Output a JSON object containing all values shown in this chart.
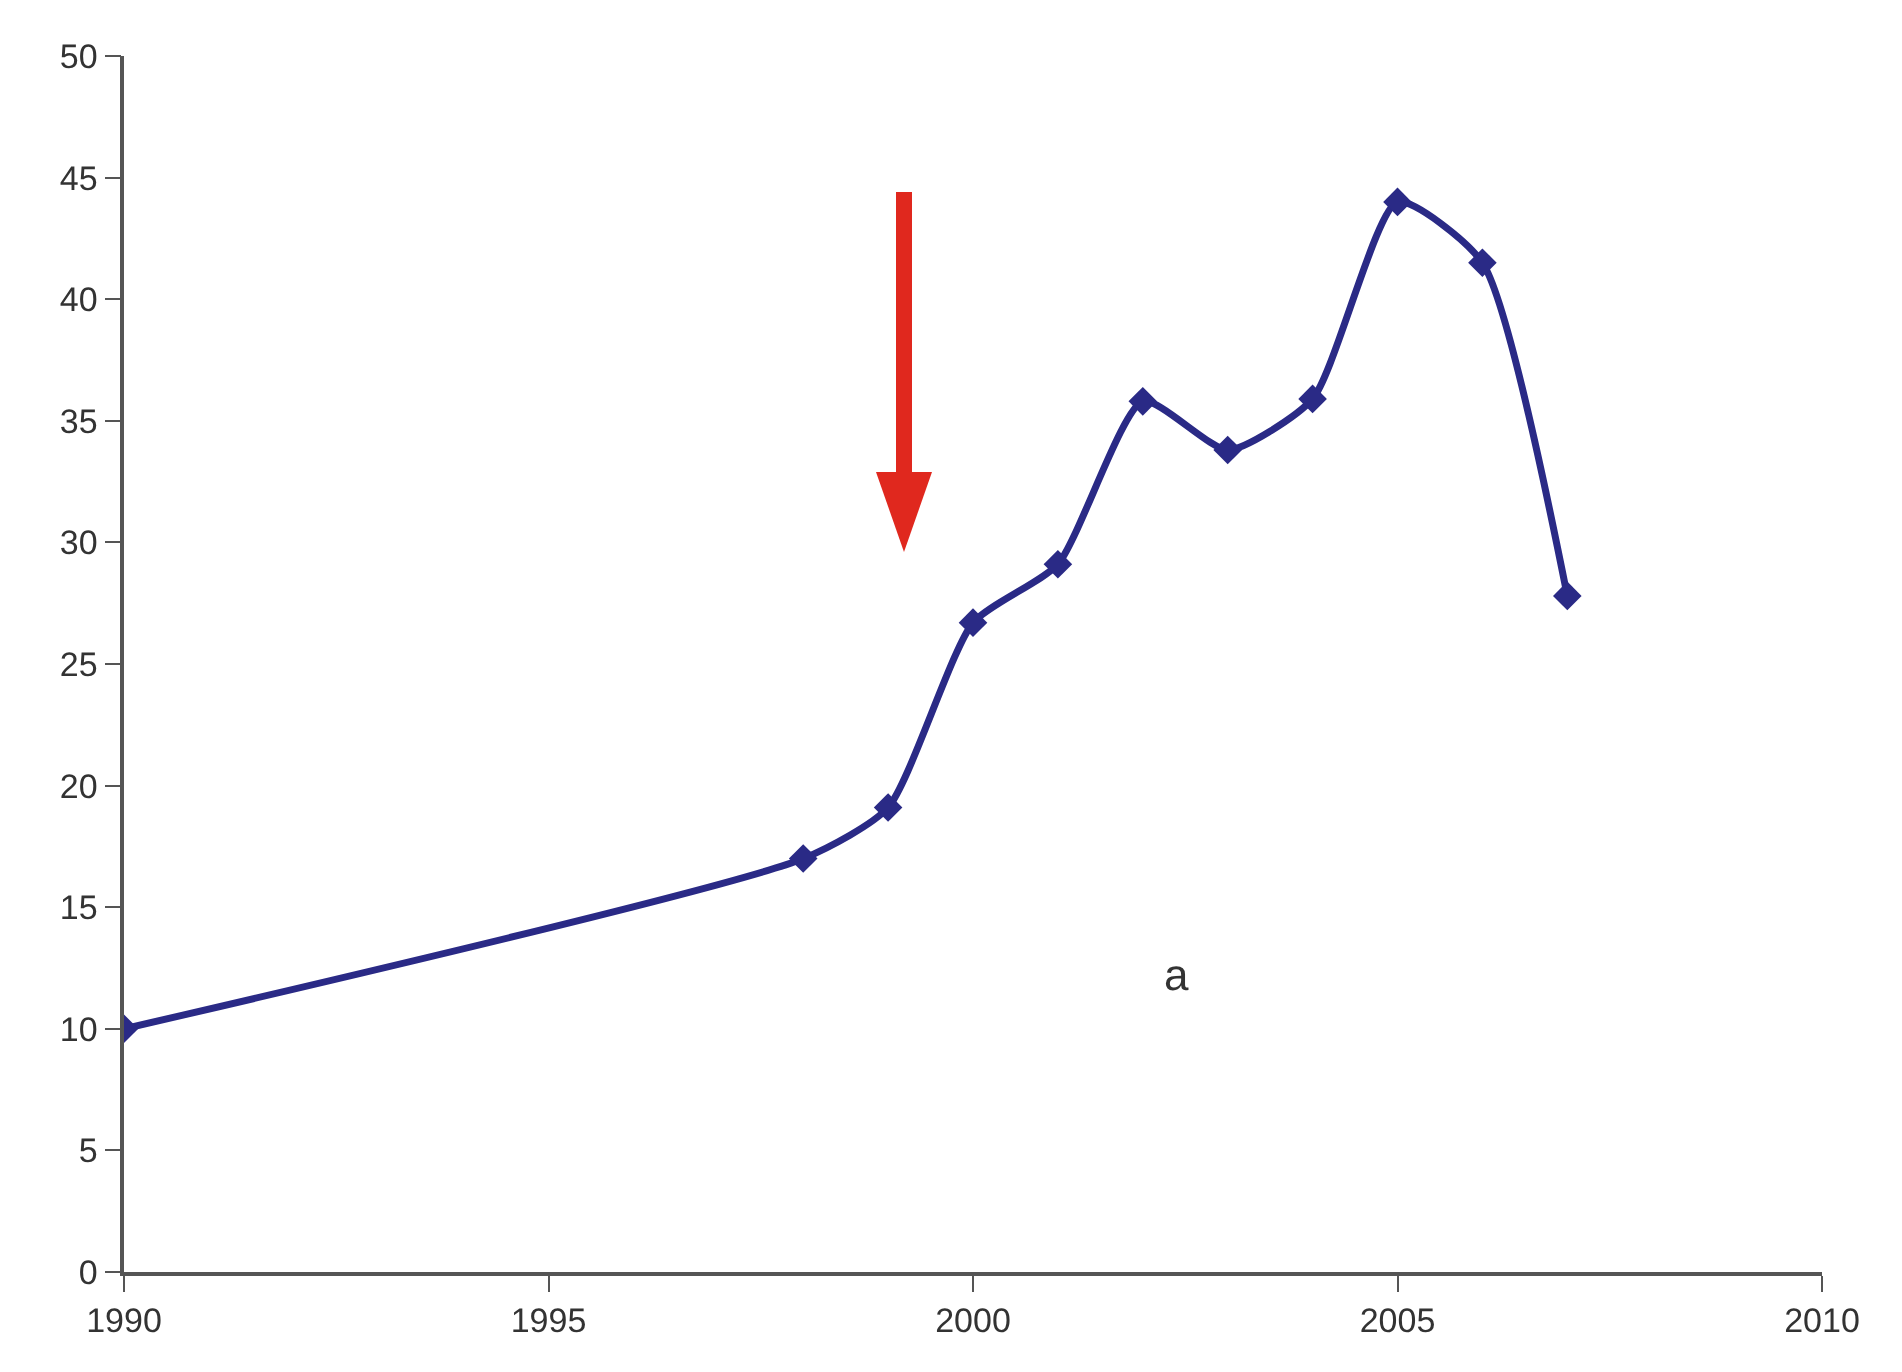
{
  "chart_data": {
    "type": "line",
    "x": [
      1990,
      1998,
      1999,
      2000,
      2001,
      2002,
      2003,
      2004,
      2005,
      2006,
      2007
    ],
    "series": [
      {
        "color": "#2a2a86",
        "values": [
          10,
          17,
          19.1,
          26.7,
          29.1,
          35.8,
          33.8,
          35.9,
          44,
          41.5,
          27.8
        ]
      }
    ],
    "xlim": [
      1990,
      2010
    ],
    "xticks": [
      1990,
      1995,
      2000,
      2005,
      2010
    ],
    "ylim": [
      0,
      50
    ],
    "yticks": [
      0,
      5,
      10,
      15,
      20,
      25,
      30,
      35,
      40,
      45,
      50
    ],
    "marker": "diamond",
    "line_style": "solid",
    "annotations": [
      "a"
    ]
  }
}
